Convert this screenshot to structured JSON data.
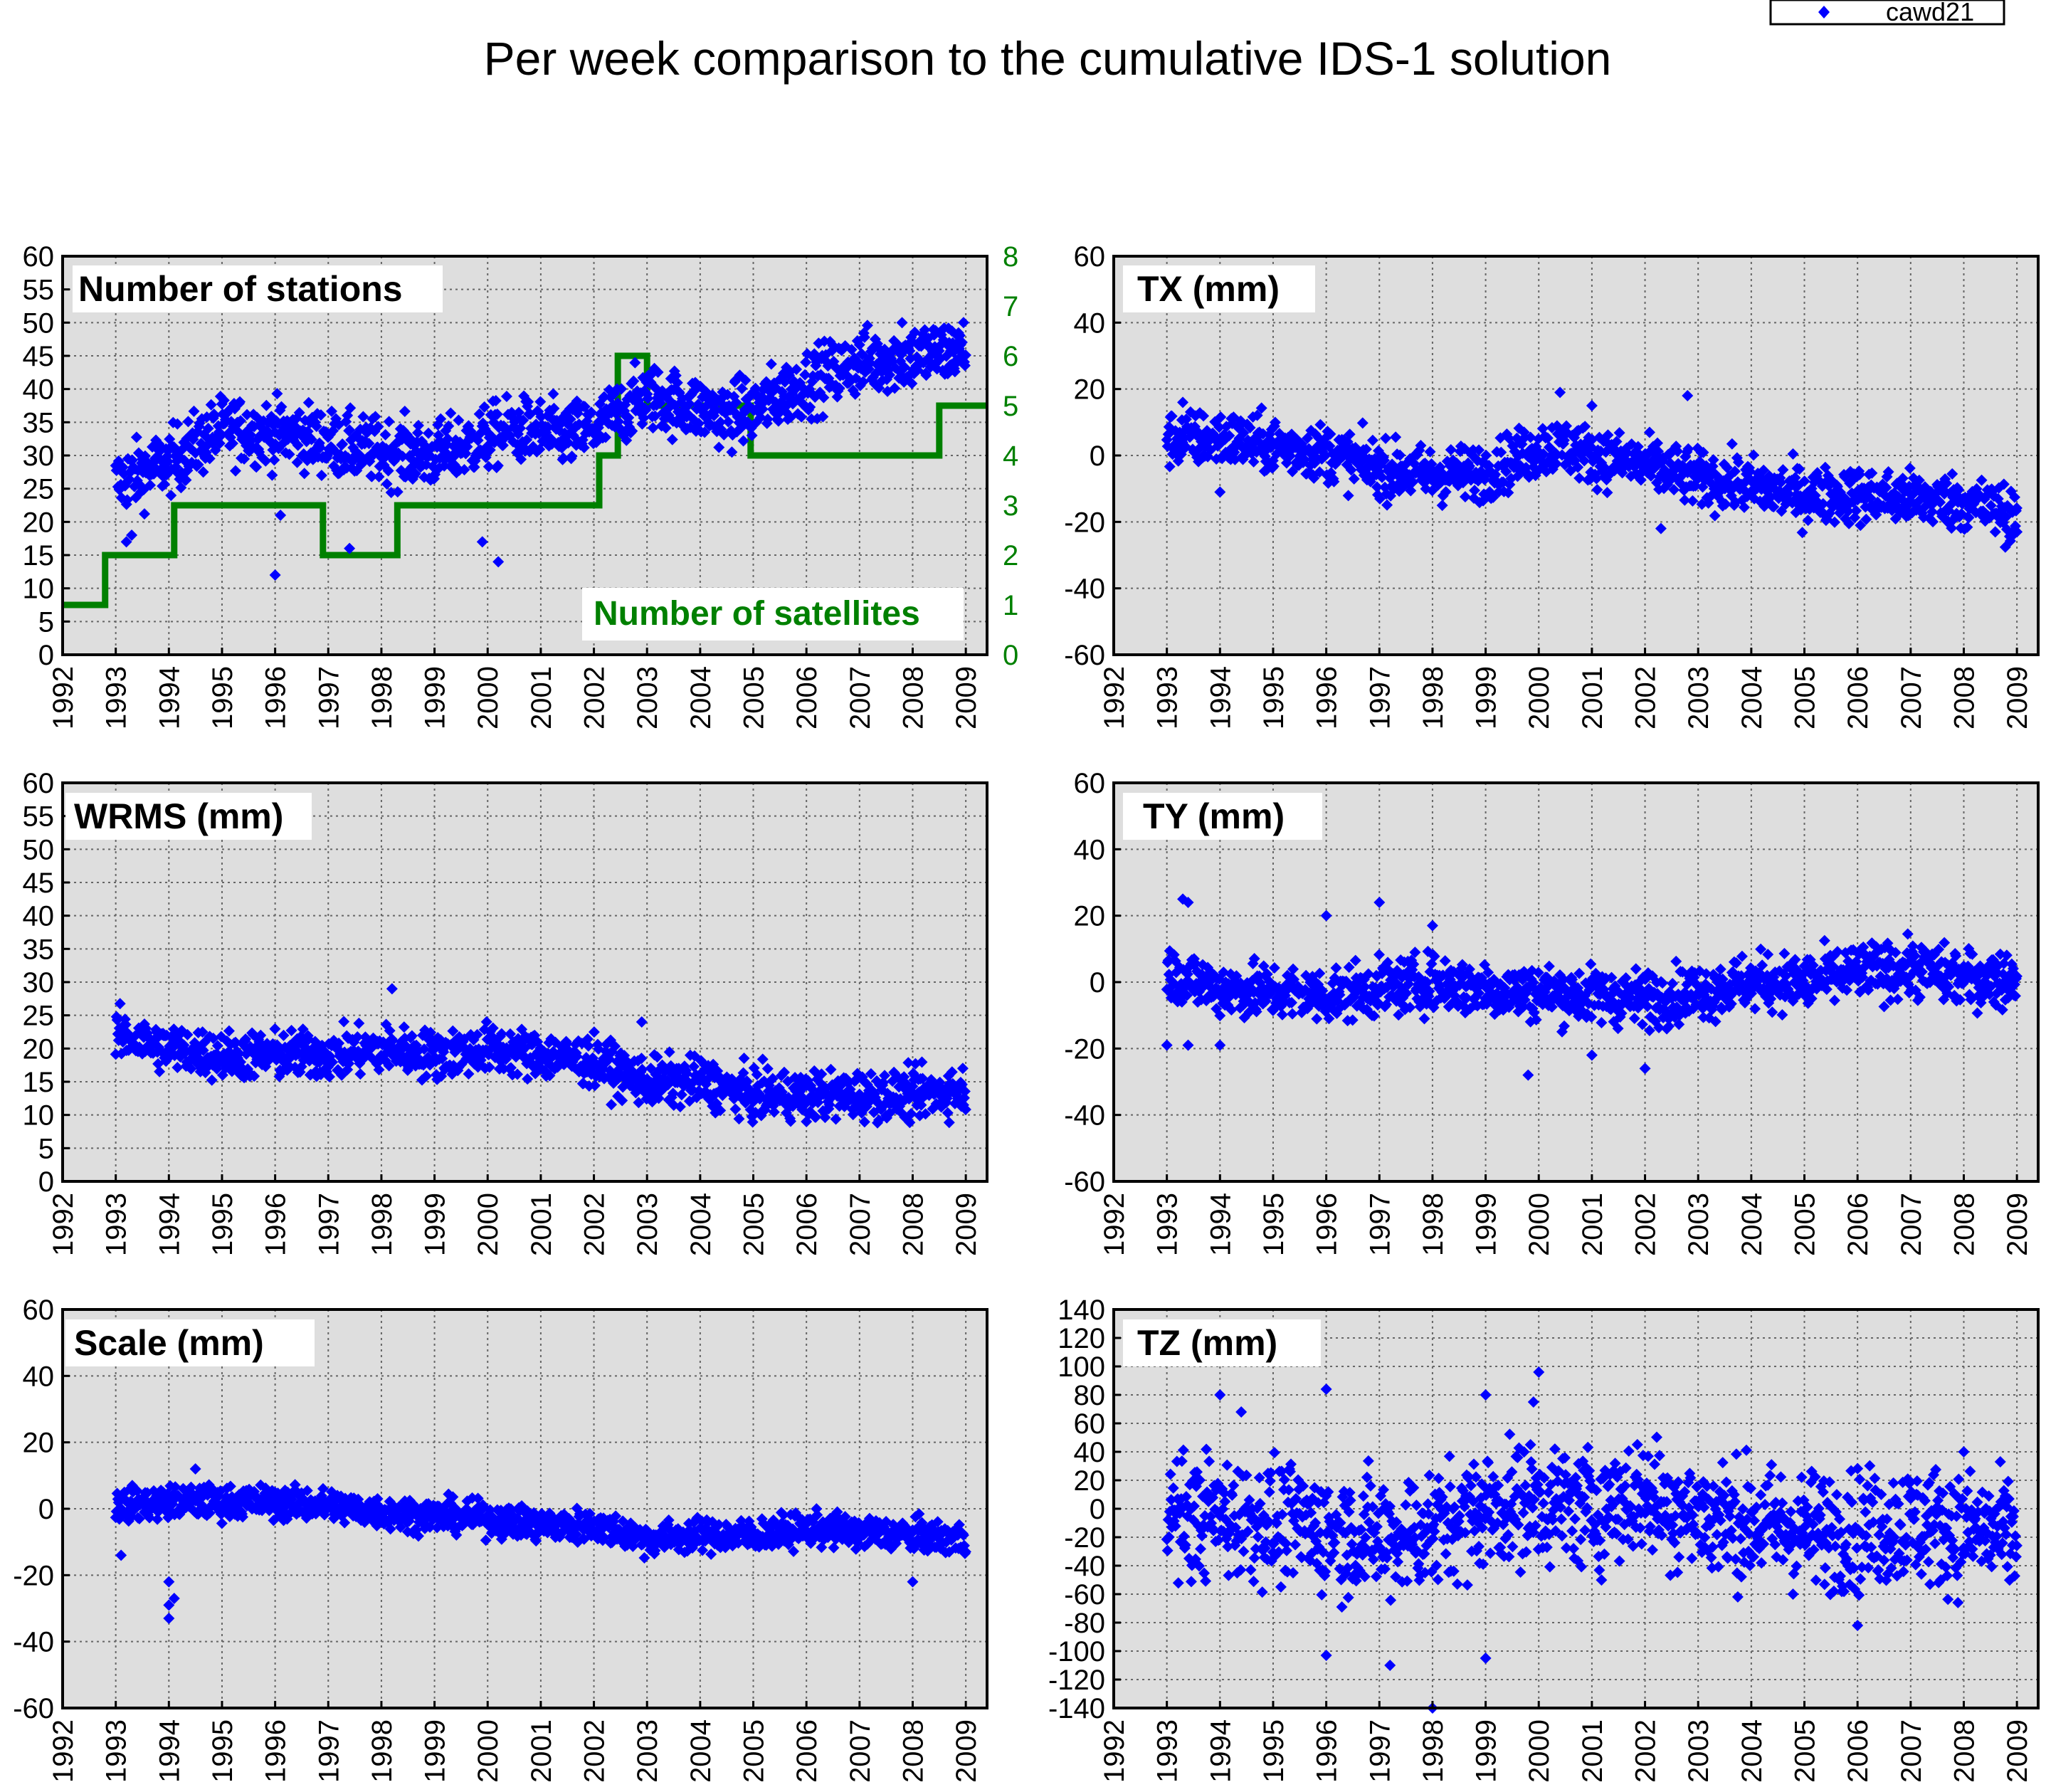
{
  "title": "Per week comparison to the cumulative IDS-1 solution",
  "legend": {
    "label": "cawd21",
    "marker_color": "#0000ff",
    "marker": "diamond",
    "placement": "top-right"
  },
  "colors": {
    "points": "#0000ff",
    "satellites": "#008000",
    "plot_bg": "#dedede",
    "grid": "#666666"
  },
  "x_ticks": [
    "1992",
    "1993",
    "1994",
    "1995",
    "1996",
    "1997",
    "1998",
    "1999",
    "2000",
    "2001",
    "2002",
    "2003",
    "2004",
    "2005",
    "2006",
    "2007",
    "2008",
    "2009"
  ],
  "chart_data": [
    {
      "id": "stations",
      "type": "scatter",
      "title": "Number of stations",
      "xlim": [
        1992,
        2009.4
      ],
      "ylim": [
        0,
        60
      ],
      "yticks": [
        0,
        5,
        10,
        15,
        20,
        25,
        30,
        35,
        40,
        45,
        50,
        55,
        60
      ],
      "trend": [
        [
          1993.0,
          26
        ],
        [
          1994.0,
          29
        ],
        [
          1995.0,
          34
        ],
        [
          1996.5,
          33
        ],
        [
          1997.5,
          31
        ],
        [
          1999.0,
          30
        ],
        [
          2000.5,
          34
        ],
        [
          2001.5,
          33
        ],
        [
          2002.0,
          34
        ],
        [
          2003.0,
          39
        ],
        [
          2004.5,
          36
        ],
        [
          2005.0,
          37
        ],
        [
          2006.0,
          41
        ],
        [
          2007.0,
          44
        ],
        [
          2008.0,
          45
        ],
        [
          2009.0,
          46
        ]
      ],
      "spread": 3.5,
      "outliers": [
        [
          1996.0,
          12
        ],
        [
          1999.9,
          17
        ],
        [
          2000.2,
          14
        ],
        [
          1993.2,
          17
        ],
        [
          1993.3,
          18
        ],
        [
          1996.1,
          21
        ],
        [
          1997.4,
          16
        ],
        [
          2007.8,
          50
        ]
      ],
      "secondary": {
        "label": "Number of satellites",
        "ylim": [
          0,
          8
        ],
        "yticks": [
          0,
          1,
          2,
          3,
          4,
          5,
          6,
          7,
          8
        ],
        "steps": [
          [
            1992.0,
            1
          ],
          [
            1992.8,
            2
          ],
          [
            1994.1,
            3
          ],
          [
            1996.9,
            2
          ],
          [
            1998.3,
            3
          ],
          [
            2002.1,
            4
          ],
          [
            2002.45,
            6
          ],
          [
            2003.0,
            5
          ],
          [
            2004.95,
            4
          ],
          [
            2008.5,
            5
          ],
          [
            2009.4,
            5
          ]
        ]
      }
    },
    {
      "id": "tx",
      "type": "scatter",
      "title": "TX (mm)",
      "xlim": [
        1992,
        2009.4
      ],
      "ylim": [
        -60,
        60
      ],
      "yticks": [
        -60,
        -40,
        -20,
        0,
        20,
        40,
        60
      ],
      "trend": [
        [
          1993.0,
          5
        ],
        [
          1994.0,
          5
        ],
        [
          1995.0,
          3
        ],
        [
          1996.0,
          1
        ],
        [
          1997.0,
          -4
        ],
        [
          1998.0,
          -6
        ],
        [
          1999.0,
          -5
        ],
        [
          2000.0,
          2
        ],
        [
          2000.5,
          3
        ],
        [
          2001.0,
          0
        ],
        [
          2002.0,
          -3
        ],
        [
          2003.0,
          -7
        ],
        [
          2004.0,
          -9
        ],
        [
          2005.0,
          -12
        ],
        [
          2006.0,
          -12
        ],
        [
          2007.0,
          -13
        ],
        [
          2008.0,
          -14
        ],
        [
          2009.0,
          -18
        ]
      ],
      "spread": 6,
      "outliers": [
        [
          1993.3,
          16
        ],
        [
          1994.0,
          -11
        ],
        [
          2000.4,
          19
        ],
        [
          2002.8,
          18
        ],
        [
          2001.0,
          15
        ],
        [
          2002.3,
          -22
        ],
        [
          2009.0,
          -23
        ]
      ]
    },
    {
      "id": "wrms",
      "type": "scatter",
      "title": "WRMS (mm)",
      "xlim": [
        1992,
        2009.4
      ],
      "ylim": [
        0,
        60
      ],
      "yticks": [
        0,
        5,
        10,
        15,
        20,
        25,
        30,
        35,
        40,
        45,
        50,
        55,
        60
      ],
      "trend": [
        [
          1993.0,
          22
        ],
        [
          1994.0,
          20
        ],
        [
          1995.0,
          19
        ],
        [
          1996.0,
          19
        ],
        [
          1997.0,
          19
        ],
        [
          1998.0,
          20
        ],
        [
          1999.0,
          19
        ],
        [
          2000.0,
          20
        ],
        [
          2001.0,
          19
        ],
        [
          2002.0,
          18
        ],
        [
          2003.0,
          15
        ],
        [
          2004.0,
          15
        ],
        [
          2005.0,
          13
        ],
        [
          2006.0,
          13
        ],
        [
          2007.0,
          13
        ],
        [
          2008.0,
          13
        ],
        [
          2009.0,
          14
        ]
      ],
      "spread": 2.6,
      "outliers": [
        [
          1998.2,
          29
        ],
        [
          2006.0,
          9
        ],
        [
          2002.9,
          24
        ]
      ]
    },
    {
      "id": "ty",
      "type": "scatter",
      "title": "TY (mm)",
      "xlim": [
        1992,
        2009.4
      ],
      "ylim": [
        -60,
        60
      ],
      "yticks": [
        -60,
        -40,
        -20,
        0,
        20,
        40,
        60
      ],
      "trend": [
        [
          1993.0,
          3
        ],
        [
          1994.0,
          -2
        ],
        [
          1995.0,
          -3
        ],
        [
          1996.0,
          -4
        ],
        [
          1997.0,
          -2
        ],
        [
          1998.0,
          0
        ],
        [
          1999.0,
          -2
        ],
        [
          2000.0,
          -3
        ],
        [
          2001.0,
          -4
        ],
        [
          2002.0,
          -5
        ],
        [
          2003.0,
          -3
        ],
        [
          2004.0,
          0
        ],
        [
          2005.0,
          0
        ],
        [
          2006.0,
          3
        ],
        [
          2007.0,
          4
        ],
        [
          2008.0,
          1
        ],
        [
          2009.0,
          1
        ]
      ],
      "spread": 6,
      "outliers": [
        [
          1993.3,
          25
        ],
        [
          1993.4,
          24
        ],
        [
          1997.0,
          24
        ],
        [
          1998.0,
          17
        ],
        [
          1996.0,
          20
        ],
        [
          1999.8,
          -28
        ],
        [
          2001.0,
          -22
        ],
        [
          2002.0,
          -26
        ],
        [
          1993.0,
          -19
        ],
        [
          1993.4,
          -19
        ],
        [
          1994.0,
          -19
        ]
      ]
    },
    {
      "id": "scale",
      "type": "scatter",
      "title": "Scale (mm)",
      "xlim": [
        1992,
        2009.4
      ],
      "ylim": [
        -60,
        60
      ],
      "yticks": [
        -60,
        -40,
        -20,
        0,
        20,
        40,
        60
      ],
      "trend": [
        [
          1993.0,
          1
        ],
        [
          1994.0,
          2
        ],
        [
          1995.0,
          2
        ],
        [
          1996.0,
          2
        ],
        [
          1997.0,
          1
        ],
        [
          1998.0,
          -1
        ],
        [
          1999.0,
          -2
        ],
        [
          2000.0,
          -3
        ],
        [
          2001.0,
          -5
        ],
        [
          2002.0,
          -5
        ],
        [
          2003.0,
          -9
        ],
        [
          2004.0,
          -8
        ],
        [
          2005.0,
          -8
        ],
        [
          2006.0,
          -6
        ],
        [
          2007.0,
          -7
        ],
        [
          2008.0,
          -8
        ],
        [
          2009.0,
          -9
        ]
      ],
      "spread": 3.5,
      "outliers": [
        [
          1994.0,
          -33
        ],
        [
          1994.0,
          -29
        ],
        [
          1994.1,
          -27
        ],
        [
          1994.0,
          -22
        ],
        [
          2008.0,
          -22
        ],
        [
          1994.5,
          12
        ],
        [
          1993.1,
          -14
        ]
      ]
    },
    {
      "id": "tz",
      "type": "scatter",
      "title": "TZ (mm)",
      "xlim": [
        1992,
        2009.4
      ],
      "ylim": [
        -140,
        140
      ],
      "yticks": [
        -140,
        -120,
        -100,
        -80,
        -60,
        -40,
        -20,
        0,
        20,
        40,
        60,
        80,
        100,
        120,
        140
      ],
      "trend": [
        [
          1993.0,
          -5
        ],
        [
          1994.0,
          -5
        ],
        [
          1995.0,
          -10
        ],
        [
          1996.0,
          -15
        ],
        [
          1997.0,
          -20
        ],
        [
          1998.0,
          -15
        ],
        [
          1999.0,
          0
        ],
        [
          2000.0,
          5
        ],
        [
          2001.0,
          0
        ],
        [
          2002.0,
          10
        ],
        [
          2003.0,
          -5
        ],
        [
          2004.0,
          -10
        ],
        [
          2005.0,
          -15
        ],
        [
          2006.0,
          -15
        ],
        [
          2007.0,
          -10
        ],
        [
          2008.0,
          -15
        ],
        [
          2009.0,
          -20
        ]
      ],
      "spread": 30,
      "outliers": [
        [
          1994.0,
          80
        ],
        [
          1994.4,
          68
        ],
        [
          1996.0,
          84
        ],
        [
          1999.0,
          80
        ],
        [
          2000.0,
          96
        ],
        [
          1998.0,
          -140
        ],
        [
          1997.2,
          -110
        ],
        [
          1996.0,
          -103
        ],
        [
          1999.0,
          -105
        ],
        [
          1999.9,
          75
        ],
        [
          2008.0,
          40
        ],
        [
          2006.0,
          -82
        ]
      ]
    }
  ]
}
